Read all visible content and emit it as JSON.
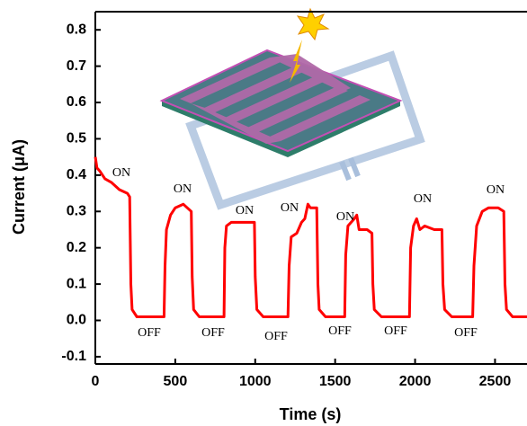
{
  "chart_data": {
    "type": "line",
    "xlabel": "Time (s)",
    "ylabel": "Current (μA)",
    "color": "#ff0000",
    "xlim": [
      0,
      2700
    ],
    "xticks": [
      0,
      500,
      1000,
      1500,
      2000,
      2500
    ],
    "ylim": [
      -0.12,
      0.85
    ],
    "yticks": [
      -0.1,
      {
        "value": 0,
        "label": "0.0"
      },
      0.1,
      0.2,
      0.3,
      0.4,
      0.5,
      0.6,
      0.7,
      0.8
    ],
    "x": [
      0,
      10,
      30,
      60,
      100,
      150,
      200,
      215,
      222,
      230,
      260,
      430,
      436,
      445,
      470,
      500,
      550,
      600,
      606,
      615,
      650,
      805,
      810,
      820,
      850,
      950,
      995,
      1000,
      1010,
      1050,
      1205,
      1212,
      1225,
      1260,
      1290,
      1310,
      1330,
      1345,
      1385,
      1392,
      1400,
      1440,
      1560,
      1566,
      1580,
      1620,
      1635,
      1650,
      1700,
      1730,
      1736,
      1745,
      1790,
      1965,
      1972,
      1990,
      2010,
      2030,
      2060,
      2120,
      2168,
      2174,
      2185,
      2230,
      2360,
      2368,
      2385,
      2420,
      2460,
      2520,
      2555,
      2562,
      2572,
      2610,
      2700
    ],
    "values": [
      0.45,
      0.42,
      0.41,
      0.39,
      0.38,
      0.36,
      0.35,
      0.34,
      0.1,
      0.03,
      0.01,
      0.01,
      0.15,
      0.25,
      0.29,
      0.31,
      0.32,
      0.3,
      0.12,
      0.03,
      0.01,
      0.01,
      0.2,
      0.26,
      0.27,
      0.27,
      0.27,
      0.12,
      0.03,
      0.01,
      0.01,
      0.15,
      0.23,
      0.24,
      0.27,
      0.28,
      0.32,
      0.31,
      0.31,
      0.1,
      0.03,
      0.01,
      0.01,
      0.18,
      0.26,
      0.28,
      0.29,
      0.25,
      0.25,
      0.24,
      0.1,
      0.03,
      0.01,
      0.01,
      0.2,
      0.26,
      0.28,
      0.25,
      0.26,
      0.25,
      0.25,
      0.1,
      0.03,
      0.01,
      0.01,
      0.15,
      0.26,
      0.3,
      0.31,
      0.31,
      0.3,
      0.1,
      0.03,
      0.01,
      0.01
    ],
    "annotations": [
      "ON",
      "ON",
      "ON",
      "ON",
      "ON",
      "ON",
      "ON",
      "OFF",
      "OFF",
      "OFF",
      "OFF",
      "OFF",
      "OFF"
    ]
  }
}
